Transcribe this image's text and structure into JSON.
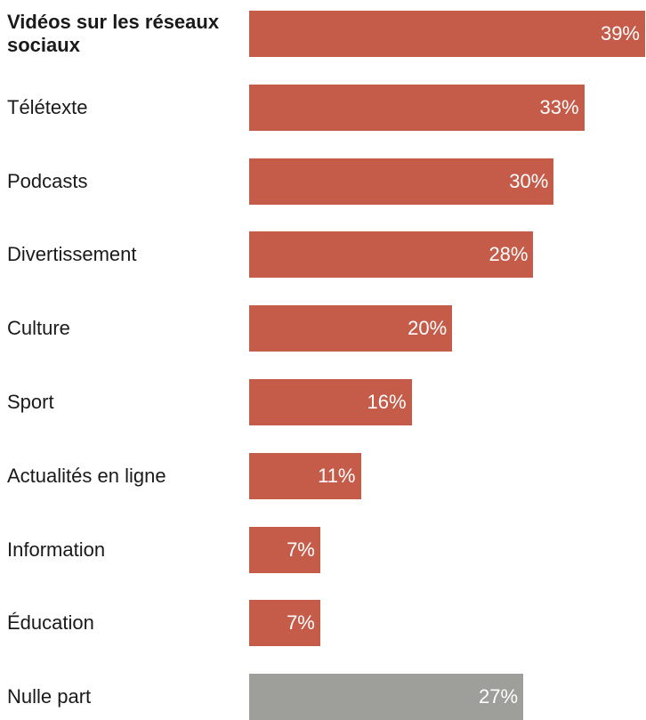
{
  "chart_data": {
    "type": "bar",
    "orientation": "horizontal",
    "categories": [
      "Vidéos sur les réseaux sociaux",
      "Télétexte",
      "Podcasts",
      "Divertissement",
      "Culture",
      "Sport",
      "Actualités en ligne",
      "Information",
      "Éducation",
      "Nulle part"
    ],
    "values": [
      39,
      33,
      30,
      28,
      20,
      16,
      11,
      7,
      7,
      27
    ],
    "value_labels": [
      "39%",
      "33%",
      "30%",
      "28%",
      "20%",
      "16%",
      "11%",
      "7%",
      "7%",
      "27%"
    ],
    "bar_colors": [
      "#c55c4a",
      "#c55c4a",
      "#c55c4a",
      "#c55c4a",
      "#c55c4a",
      "#c55c4a",
      "#c55c4a",
      "#c55c4a",
      "#c55c4a",
      "#9e9e9a"
    ],
    "highlighted_category": "Vidéos sur les réseaux sociaux",
    "xlim": [
      0,
      39
    ],
    "grid": false,
    "legend": "none"
  }
}
